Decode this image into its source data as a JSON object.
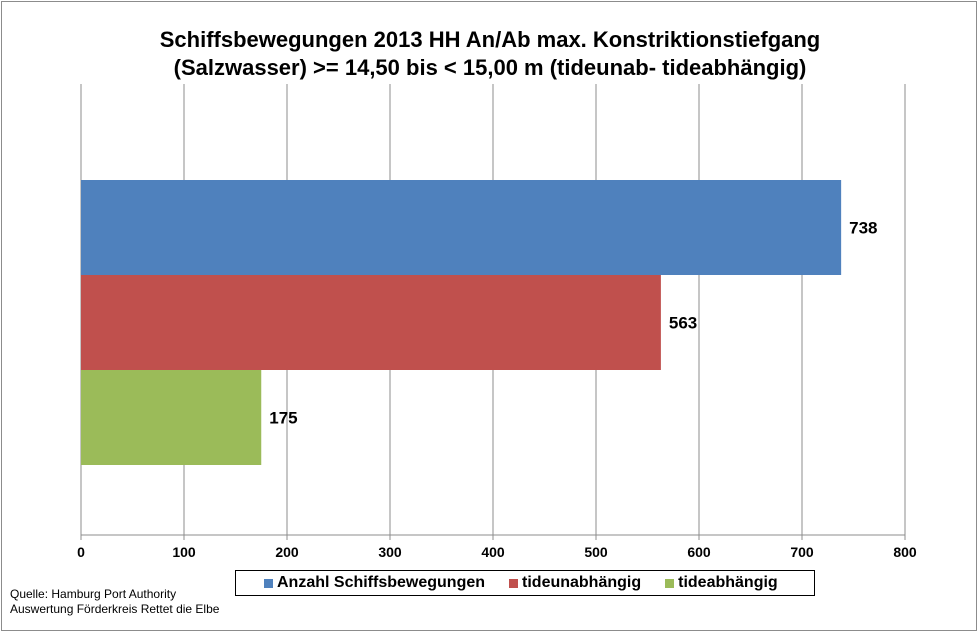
{
  "chart_data": {
    "type": "bar",
    "orientation": "horizontal",
    "title_lines": [
      "Schiffsbewegungen 2013 HH An/Ab max. Konstriktionstiefgang",
      "(Salzwasser) >= 14,50 bis < 15,00 m (tideunab- tideabhängig)"
    ],
    "series": [
      {
        "name": "Anzahl Schiffsbewegungen",
        "value": 738,
        "label": "738",
        "color": "#4f81bd"
      },
      {
        "name": "tideunabhängig",
        "value": 563,
        "label": "563",
        "color": "#c0504d"
      },
      {
        "name": "tideabhängig",
        "value": 175,
        "label": "175",
        "color": "#9bbb59"
      }
    ],
    "xlim": [
      0,
      800
    ],
    "xticks": [
      "0",
      "100",
      "200",
      "300",
      "400",
      "500",
      "600",
      "700",
      "800"
    ],
    "grid": "vertical",
    "legend_position": "bottom"
  },
  "source_lines": [
    "Quelle: Hamburg Port Authority",
    "Auswertung Förderkreis Rettet  die Elbe"
  ]
}
